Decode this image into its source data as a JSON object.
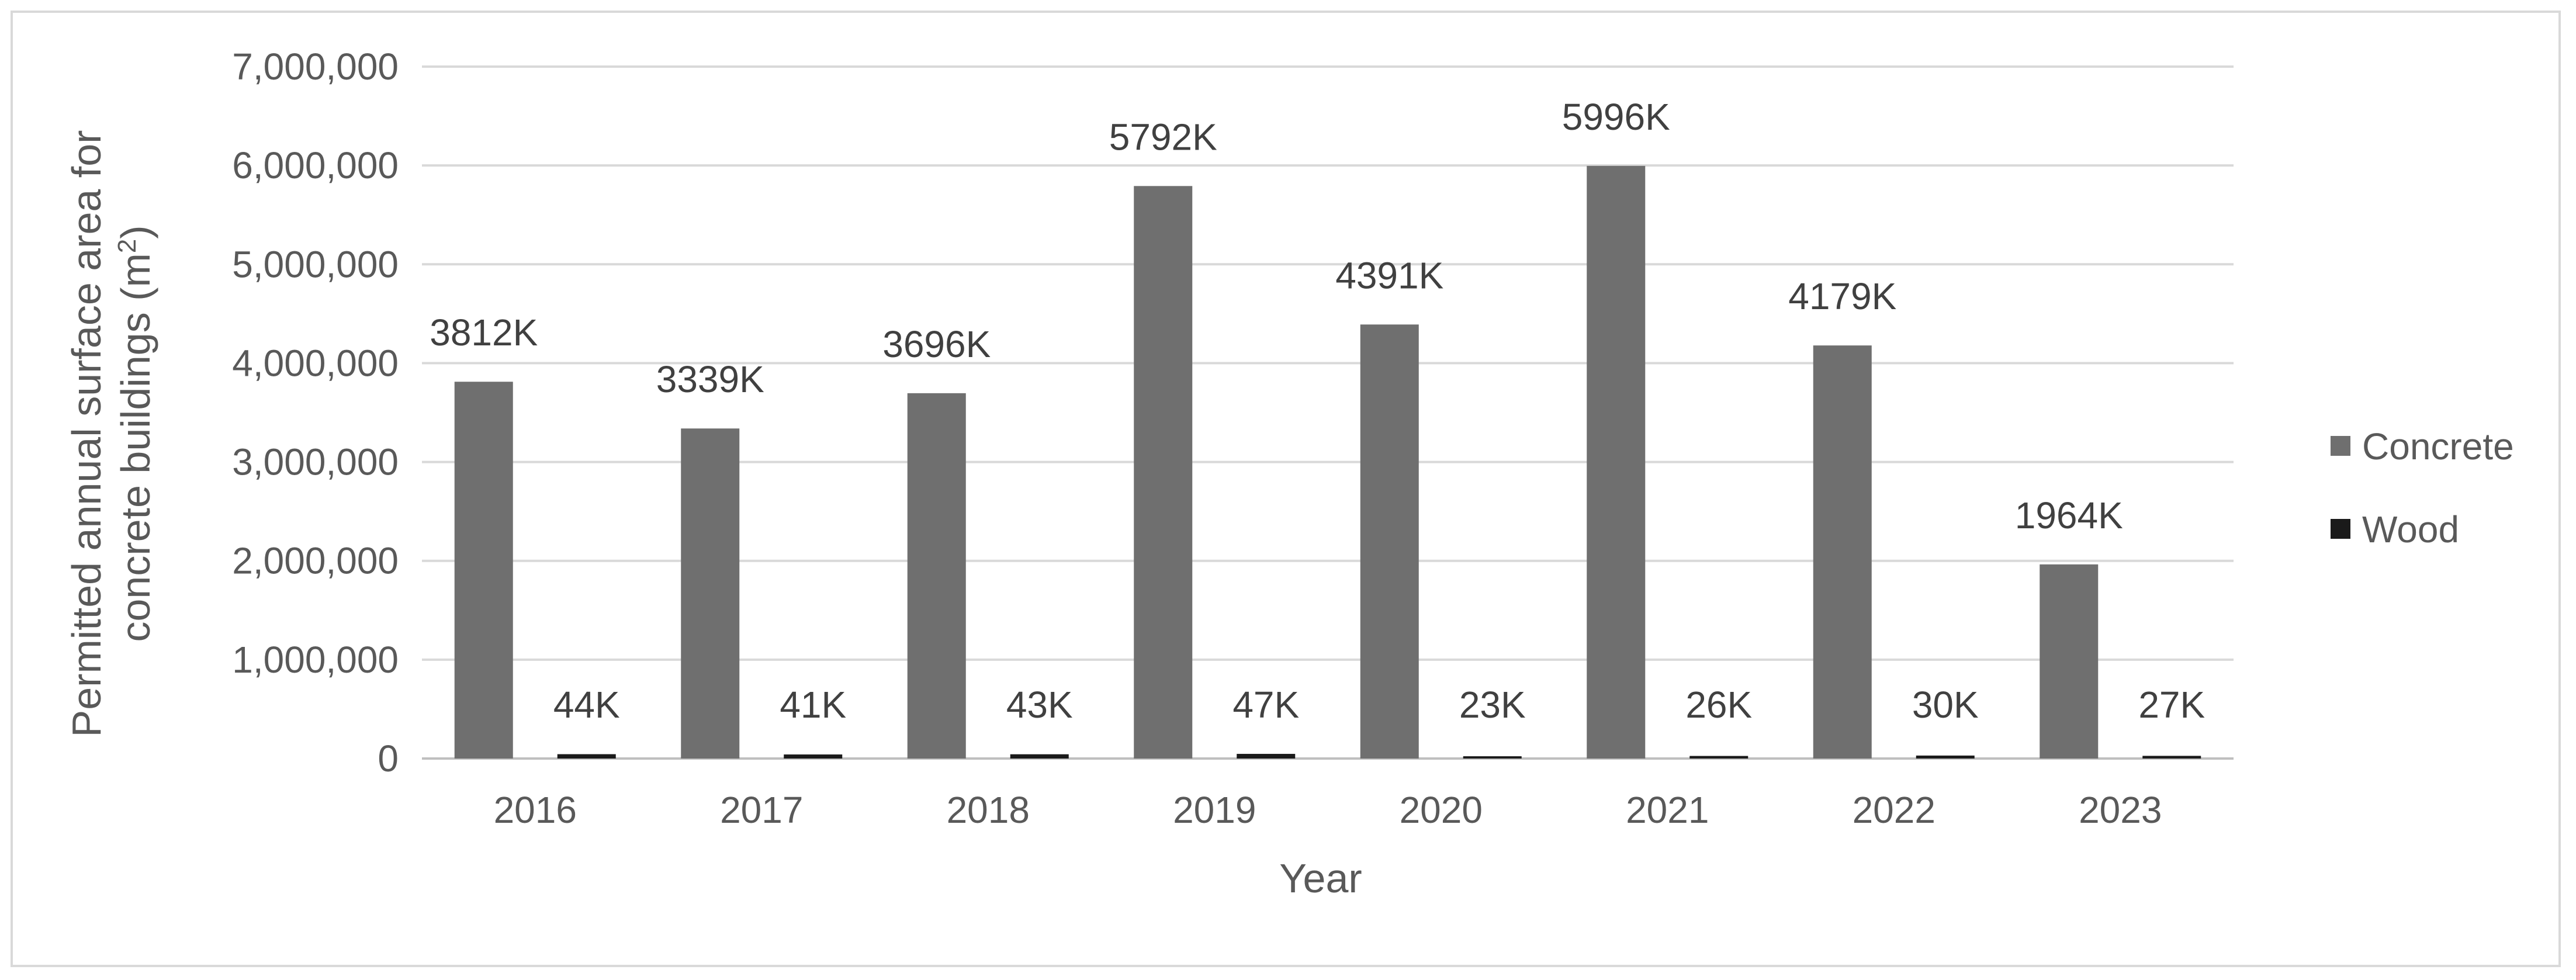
{
  "chart_data": {
    "type": "bar",
    "title": "",
    "xlabel": "Year",
    "ylabel_line1": "Permitted annual surface area for",
    "ylabel_line2": "concrete buildings (m",
    "ylabel_sup": "2",
    "ylabel_close": ")",
    "ylim": [
      0,
      7000000
    ],
    "yticks": [
      0,
      1000000,
      2000000,
      3000000,
      4000000,
      5000000,
      6000000,
      7000000
    ],
    "ytick_labels": [
      "0",
      "1,000,000",
      "2,000,000",
      "3,000,000",
      "4,000,000",
      "5,000,000",
      "6,000,000",
      "7,000,000"
    ],
    "grid": true,
    "legend_position": "right",
    "categories": [
      "2016",
      "2017",
      "2018",
      "2019",
      "2020",
      "2021",
      "2022",
      "2023"
    ],
    "series": [
      {
        "name": "Concrete",
        "color": "#6f6f6f",
        "values": [
          3812000,
          3339000,
          3696000,
          5792000,
          4391000,
          5996000,
          4179000,
          1964000
        ],
        "labels": [
          "3812K",
          "3339K",
          "3696K",
          "5792K",
          "4391K",
          "5996K",
          "4179K",
          "1964K"
        ]
      },
      {
        "name": "Wood",
        "color": "#1a1a1a",
        "values": [
          44000,
          41000,
          43000,
          47000,
          23000,
          26000,
          30000,
          27000
        ],
        "labels": [
          "44K",
          "41K",
          "43K",
          "47K",
          "23K",
          "26K",
          "30K",
          "27K"
        ]
      }
    ]
  }
}
